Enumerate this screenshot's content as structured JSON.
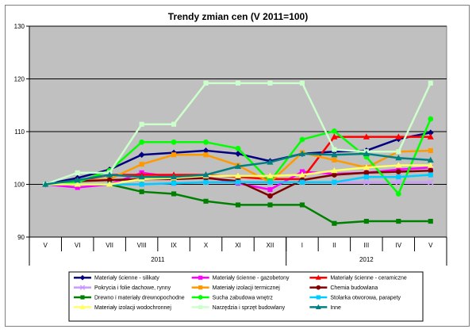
{
  "chart_data": {
    "type": "line",
    "title": "Trendy zmian cen (V 2011=100)",
    "xlabel": "",
    "ylabel": "",
    "ylim": [
      90,
      130
    ],
    "yticks": [
      90,
      100,
      110,
      120,
      130
    ],
    "categories": [
      "V",
      "VI",
      "VII",
      "VIII",
      "IX",
      "X",
      "XI",
      "XII",
      "I",
      "II",
      "III",
      "IV",
      "V"
    ],
    "year_groups": [
      {
        "label": "2011",
        "start": 0,
        "end": 7
      },
      {
        "label": "2012",
        "start": 8,
        "end": 12
      }
    ],
    "grid": true,
    "legend_position": "bottom",
    "plot_background": "#c0c0c0",
    "series": [
      {
        "name": "Materiały ścienne - silikaty",
        "color": "#000080",
        "marker": "diamond",
        "values": [
          100,
          101.2,
          102.8,
          105.6,
          106,
          106.4,
          105.8,
          104.4,
          105.8,
          106.2,
          106.4,
          108.6,
          109.8
        ]
      },
      {
        "name": "Materiały ścienne - gazobetony",
        "color": "#ff00ff",
        "marker": "square",
        "values": [
          100,
          99.4,
          100,
          102.2,
          101.4,
          101.4,
          100.2,
          99,
          102.4,
          102,
          102.2,
          102.8,
          103.2
        ]
      },
      {
        "name": "Materiały ścienne - ceramiczne",
        "color": "#ff0000",
        "marker": "triangle",
        "values": [
          100,
          100.6,
          101.8,
          101.8,
          101.8,
          101.8,
          101.4,
          101,
          101,
          109,
          109,
          109,
          109
        ]
      },
      {
        "name": "Pokrycia i folie dachowe, rynny",
        "color": "#cc99ff",
        "marker": "x",
        "values": [
          100,
          100,
          100,
          100,
          100.2,
          100.4,
          100.4,
          100.4,
          100.4,
          100.4,
          100.4,
          100.4,
          100.4
        ]
      },
      {
        "name": "Materiały izolacji termicznej",
        "color": "#ff9900",
        "marker": "square",
        "values": [
          100,
          100.6,
          101,
          103.8,
          105.6,
          105.6,
          103.6,
          100.4,
          106,
          104.6,
          103.2,
          106.2,
          106.4
        ]
      },
      {
        "name": "Chemia budowlana",
        "color": "#800000",
        "marker": "circle",
        "values": [
          100,
          100.6,
          100.8,
          101,
          101,
          101.2,
          100.6,
          97.8,
          100.8,
          101.8,
          102.2,
          102.4,
          102.6
        ]
      },
      {
        "name": "Drewno i materiały drewnopochodne",
        "color": "#008000",
        "marker": "square",
        "values": [
          100,
          100,
          100,
          98.6,
          98.2,
          96.8,
          96.1,
          96.1,
          96.1,
          92.6,
          93,
          93,
          93
        ]
      },
      {
        "name": "Sucha zabudowa wnętrz",
        "color": "#00ff00",
        "marker": "circle",
        "values": [
          100,
          100.4,
          102.6,
          108,
          108,
          108,
          106.8,
          100.6,
          108.5,
          110.1,
          105.2,
          98.2,
          112.4
        ]
      },
      {
        "name": "Stolarka otworowa, parapety",
        "color": "#00ccff",
        "marker": "square",
        "values": [
          100,
          100,
          100,
          100,
          100.2,
          100.4,
          100.4,
          100.4,
          100.4,
          100.4,
          101.4,
          101.4,
          101.8
        ]
      },
      {
        "name": "Materiały izolacji wodochronnej",
        "color": "#ffff66",
        "marker": "triangle",
        "values": [
          100,
          100,
          100,
          101,
          101.2,
          101.6,
          101.6,
          101.6,
          101.8,
          102.6,
          103.2,
          103.6,
          103.6
        ]
      },
      {
        "name": "Narzędzia i sprzęt budowlany",
        "color": "#ccffcc",
        "marker": "square",
        "values": [
          100,
          102.2,
          102.2,
          111.4,
          111.4,
          119.2,
          119.2,
          119.2,
          119.2,
          106.6,
          106.2,
          106.2,
          119.2
        ]
      },
      {
        "name": "Inne",
        "color": "#008080",
        "marker": "triangle",
        "values": [
          100,
          100.8,
          101.8,
          101.4,
          101.4,
          101.8,
          103.4,
          104.2,
          105.8,
          105.6,
          105.8,
          105,
          104.6
        ]
      }
    ]
  }
}
